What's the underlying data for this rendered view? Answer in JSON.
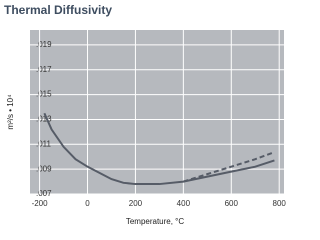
{
  "chart_data": {
    "type": "line",
    "title": "Thermal Diffusivity",
    "x_label": "Temperature, °C",
    "y_label": "m²/s • 10⁴",
    "xlim": [
      -240,
      820
    ],
    "ylim": [
      0.007,
      0.0202
    ],
    "xticks": [
      -200,
      0,
      200,
      400,
      600,
      800
    ],
    "yticks": [
      {
        "value": 0.007,
        "label": ".007"
      },
      {
        "value": 0.009,
        "label": ".009"
      },
      {
        "value": 0.011,
        "label": ".011"
      },
      {
        "value": 0.013,
        "label": ".013"
      },
      {
        "value": 0.015,
        "label": ".015"
      },
      {
        "value": 0.017,
        "label": ".017"
      },
      {
        "value": 0.019,
        "label": ".019"
      }
    ],
    "grid": true,
    "background": "#b6b9be",
    "series": [
      {
        "color": "#565c67",
        "style": "solid",
        "x": [
          -180,
          -150,
          -100,
          -50,
          0,
          50,
          100,
          150,
          200,
          300,
          400,
          500,
          600,
          700,
          780
        ],
        "values": [
          0.0135,
          0.0122,
          0.0108,
          0.0098,
          0.0092,
          0.0087,
          0.0082,
          0.0079,
          0.0078,
          0.0078,
          0.008,
          0.0084,
          0.0088,
          0.0092,
          0.0097
        ]
      },
      {
        "color": "#565c67",
        "style": "dashed",
        "x": [
          400,
          500,
          600,
          700,
          770
        ],
        "values": [
          0.008,
          0.0086,
          0.0092,
          0.0098,
          0.0103
        ]
      }
    ]
  }
}
